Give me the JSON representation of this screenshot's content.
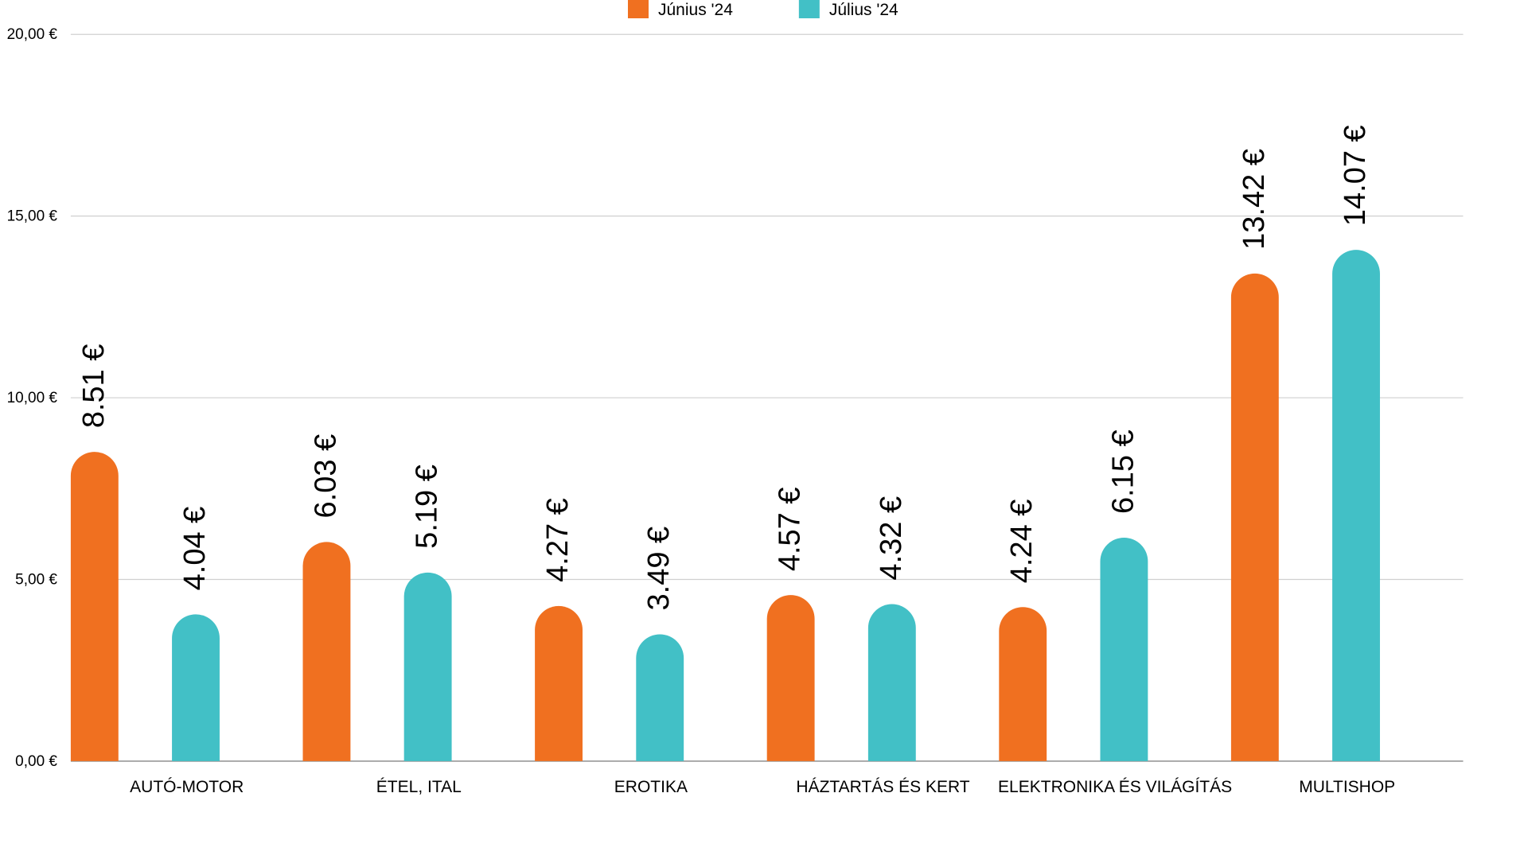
{
  "chart_data": {
    "type": "bar",
    "title": "",
    "xlabel": "",
    "ylabel": "",
    "ylim": [
      0,
      20
    ],
    "grid": true,
    "legend_position": "top-center",
    "y_ticks": [
      {
        "value": 0,
        "label": "0,00 €"
      },
      {
        "value": 5,
        "label": "5,00 €"
      },
      {
        "value": 10,
        "label": "10,00 €"
      },
      {
        "value": 15,
        "label": "15,00 €"
      },
      {
        "value": 20,
        "label": "20,00 €"
      }
    ],
    "categories": [
      "AUTÓ-MOTOR",
      "ÉTEL, ITAL",
      "EROTIKA",
      "HÁZTARTÁS ÉS KERT",
      "ELEKTRONIKA ÉS VILÁGÍTÁS",
      "MULTISHOP"
    ],
    "series": [
      {
        "name": "Június '24",
        "color": "#f07020",
        "values": [
          8.51,
          6.03,
          4.27,
          4.57,
          4.24,
          13.42
        ],
        "labels": [
          "8.51 €",
          "6.03 €",
          "4.27 €",
          "4.57 €",
          "4.24 €",
          "13.42 €"
        ]
      },
      {
        "name": "Július '24",
        "color": "#42c0c6",
        "values": [
          4.04,
          5.19,
          3.49,
          4.32,
          6.15,
          14.07
        ],
        "labels": [
          "4.04 €",
          "5.19 €",
          "3.49 €",
          "4.32 €",
          "6.15 €",
          "14.07 €"
        ]
      }
    ],
    "grid_color": "#d0d0d0",
    "axis_color": "#999999",
    "text_color": "#000000"
  }
}
